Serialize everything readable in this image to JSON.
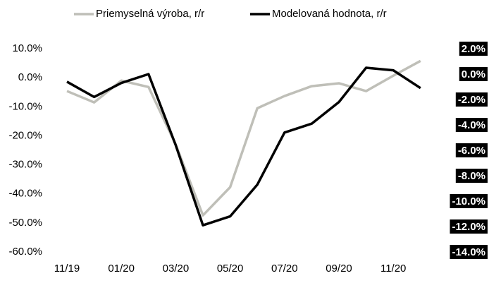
{
  "chart_data": {
    "type": "line",
    "categories": [
      "11/19",
      null,
      "01/20",
      null,
      "03/20",
      null,
      "05/20",
      null,
      "07/20",
      null,
      "09/20",
      null,
      "11/20",
      null
    ],
    "series": [
      {
        "name": "Priemyselná výroba, r/r",
        "color": "#bfbfb8",
        "values": [
          -4.6,
          -8.5,
          -1.0,
          -3.2,
          -23.0,
          -47.4,
          -37.7,
          -10.5,
          -6.3,
          -2.9,
          -1.9,
          -4.6,
          0.7,
          5.8
        ]
      },
      {
        "name": "Modelovaná hodnota, r/r",
        "color": "#000000",
        "axis": "y2",
        "values": [
          -0.6,
          -1.8,
          -0.7,
          0.0,
          -5.6,
          -11.9,
          -11.2,
          -8.7,
          -4.6,
          -3.9,
          -2.2,
          0.5,
          0.3,
          -1.1
        ]
      }
    ],
    "ylim": [
      -60,
      10
    ],
    "yticks": [
      {
        "value": 10,
        "label": "10.0%"
      },
      {
        "value": 0,
        "label": "0.0%"
      },
      {
        "value": -10,
        "label": "-10.0%"
      },
      {
        "value": -20,
        "label": "-20.0%"
      },
      {
        "value": -30,
        "label": "-30.0%"
      },
      {
        "value": -40,
        "label": "-40.0%"
      },
      {
        "value": -50,
        "label": "-50.0%"
      },
      {
        "value": -60,
        "label": "-60.0%"
      }
    ],
    "y2lim": [
      -14,
      2
    ],
    "y2ticks": [
      {
        "value": 2,
        "label": "2.0%"
      },
      {
        "value": 0,
        "label": "0.0%"
      },
      {
        "value": -2,
        "label": "-2.0%"
      },
      {
        "value": -4,
        "label": "-4.0%"
      },
      {
        "value": -6,
        "label": "-6.0%"
      },
      {
        "value": -8,
        "label": "-8.0%"
      },
      {
        "value": -10,
        "label": "-10.0%"
      },
      {
        "value": -12,
        "label": "-12.0%"
      },
      {
        "value": -14,
        "label": "-14.0%"
      }
    ]
  }
}
